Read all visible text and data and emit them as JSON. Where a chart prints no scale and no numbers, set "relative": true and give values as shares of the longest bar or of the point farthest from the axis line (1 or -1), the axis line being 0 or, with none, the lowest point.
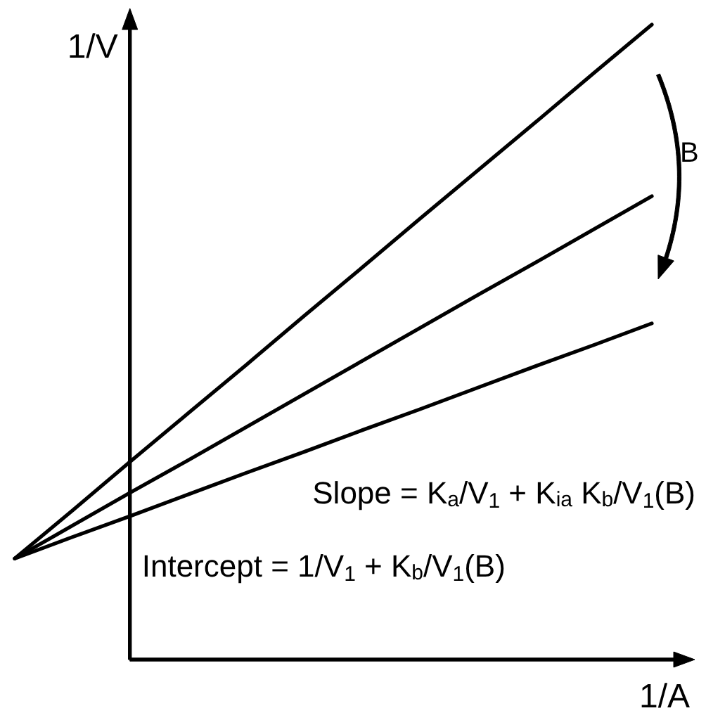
{
  "chart_data": {
    "type": "line",
    "relative": true,
    "xlabel": "1/A",
    "ylabel": "1/V",
    "categories": [
      null,
      null,
      null,
      null,
      null,
      null,
      null,
      null,
      null,
      null,
      null,
      null
    ],
    "series": [
      {
        "color": "#000000",
        "values": [
          0.16,
          0.236,
          0.313,
          0.389,
          0.465,
          0.542,
          0.618,
          0.695,
          0.771,
          0.847,
          0.924,
          1.0
        ]
      },
      {
        "color": "#000000",
        "values": [
          0.16,
          0.212,
          0.264,
          0.315,
          0.367,
          0.419,
          0.471,
          0.523,
          0.575,
          0.626,
          0.678,
          0.73
        ]
      },
      {
        "color": "#000000",
        "values": [
          0.16,
          0.194,
          0.227,
          0.261,
          0.295,
          0.328,
          0.362,
          0.395,
          0.429,
          0.463,
          0.496,
          0.53
        ]
      }
    ],
    "annotations": [
      "B",
      "Slope = K$_{a}$/V$_{1}$ + K$_{ia}$ K$_{b}$/V$_{1}$(B)",
      "Intercept = 1/V$_{1}$ + K$_{b}$/V$_{1}$(B)"
    ]
  }
}
